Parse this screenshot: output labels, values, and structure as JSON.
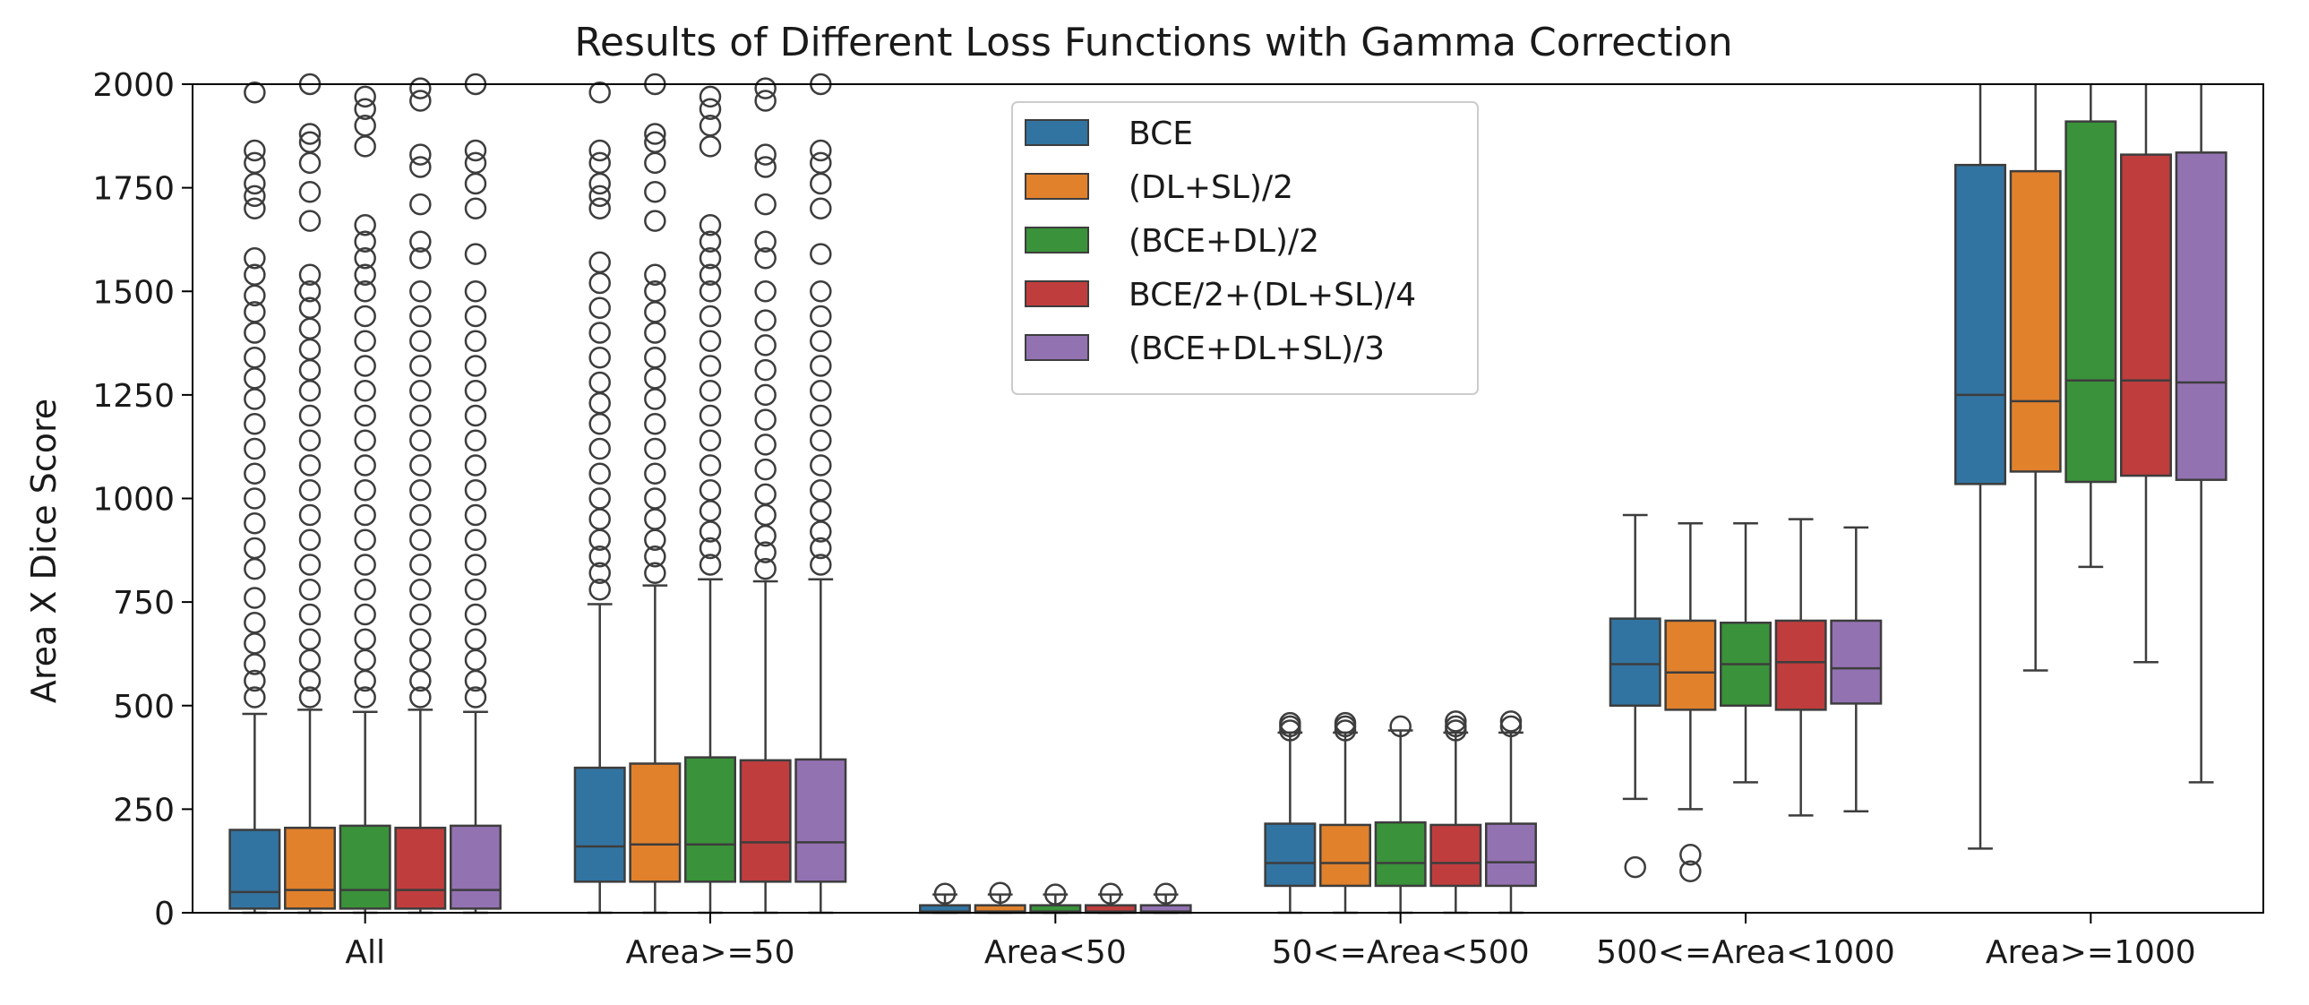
{
  "chart_data": {
    "type": "boxplot",
    "title": "Results of Different Loss Functions with Gamma Correction",
    "xlabel": "",
    "ylabel": "Area X Dice Score",
    "ylim": [
      0,
      2000
    ],
    "yticks": [
      0,
      250,
      500,
      750,
      1000,
      1250,
      1500,
      1750,
      2000
    ],
    "categories": [
      "All",
      "Area>=50",
      "Area<50",
      "50<=Area<500",
      "500<=Area<1000",
      "Area>=1000"
    ],
    "legend_position": "upper-center",
    "grid": false,
    "series": [
      {
        "name": "BCE",
        "color": "#3274a1",
        "boxes": [
          {
            "q1": 10,
            "median": 50,
            "q3": 200,
            "whisker_low": 0,
            "whisker_high": 480,
            "outliers": [
              520,
              560,
              600,
              650,
              700,
              760,
              830,
              880,
              940,
              1000,
              1060,
              1120,
              1180,
              1240,
              1290,
              1340,
              1400,
              1450,
              1490,
              1540,
              1580,
              1700,
              1730,
              1760,
              1810,
              1840,
              1980
            ]
          },
          {
            "q1": 75,
            "median": 160,
            "q3": 350,
            "whisker_low": 0,
            "whisker_high": 745,
            "outliers": [
              780,
              820,
              860,
              900,
              950,
              1000,
              1060,
              1120,
              1180,
              1230,
              1280,
              1340,
              1400,
              1460,
              1520,
              1570,
              1700,
              1730,
              1760,
              1810,
              1840,
              1980
            ]
          },
          {
            "q1": 0,
            "median": 3,
            "q3": 18,
            "whisker_low": 0,
            "whisker_high": 44,
            "outliers": [
              46
            ]
          },
          {
            "q1": 65,
            "median": 120,
            "q3": 215,
            "whisker_low": 0,
            "whisker_high": 435,
            "outliers": [
              440,
              450,
              458
            ]
          },
          {
            "q1": 500,
            "median": 600,
            "q3": 710,
            "whisker_low": 275,
            "whisker_high": 960,
            "outliers": [
              110
            ]
          },
          {
            "q1": 1035,
            "median": 1250,
            "q3": 1805,
            "whisker_low": 155,
            "whisker_high": 2000,
            "outliers": []
          }
        ]
      },
      {
        "name": "(DL+SL)/2",
        "color": "#e1812c",
        "boxes": [
          {
            "q1": 10,
            "median": 55,
            "q3": 205,
            "whisker_low": 0,
            "whisker_high": 490,
            "outliers": [
              520,
              560,
              610,
              660,
              720,
              780,
              840,
              900,
              960,
              1020,
              1080,
              1140,
              1200,
              1260,
              1310,
              1360,
              1410,
              1460,
              1500,
              1540,
              1670,
              1740,
              1810,
              1860,
              1880,
              2000
            ]
          },
          {
            "q1": 75,
            "median": 165,
            "q3": 360,
            "whisker_low": 0,
            "whisker_high": 790,
            "outliers": [
              820,
              860,
              900,
              950,
              1000,
              1060,
              1120,
              1180,
              1240,
              1290,
              1340,
              1400,
              1450,
              1500,
              1540,
              1670,
              1740,
              1810,
              1860,
              1880,
              2000
            ]
          },
          {
            "q1": 0,
            "median": 3,
            "q3": 18,
            "whisker_low": 0,
            "whisker_high": 44,
            "outliers": [
              48
            ]
          },
          {
            "q1": 65,
            "median": 120,
            "q3": 212,
            "whisker_low": 0,
            "whisker_high": 435,
            "outliers": [
              440,
              450,
              458
            ]
          },
          {
            "q1": 490,
            "median": 580,
            "q3": 705,
            "whisker_low": 250,
            "whisker_high": 940,
            "outliers": [
              100,
              140
            ]
          },
          {
            "q1": 1065,
            "median": 1235,
            "q3": 1790,
            "whisker_low": 585,
            "whisker_high": 2000,
            "outliers": []
          }
        ]
      },
      {
        "name": "(BCE+DL)/2",
        "color": "#3a923a",
        "boxes": [
          {
            "q1": 10,
            "median": 55,
            "q3": 210,
            "whisker_low": 0,
            "whisker_high": 485,
            "outliers": [
              520,
              560,
              610,
              660,
              720,
              780,
              840,
              900,
              960,
              1020,
              1080,
              1140,
              1200,
              1260,
              1320,
              1380,
              1440,
              1500,
              1540,
              1580,
              1620,
              1660,
              1850,
              1900,
              1940,
              1970
            ]
          },
          {
            "q1": 75,
            "median": 165,
            "q3": 375,
            "whisker_low": 0,
            "whisker_high": 805,
            "outliers": [
              840,
              880,
              920,
              970,
              1020,
              1080,
              1140,
              1200,
              1260,
              1320,
              1380,
              1440,
              1500,
              1540,
              1580,
              1620,
              1660,
              1850,
              1900,
              1940,
              1970
            ]
          },
          {
            "q1": 0,
            "median": 3,
            "q3": 18,
            "whisker_low": 0,
            "whisker_high": 44,
            "outliers": [
              44
            ]
          },
          {
            "q1": 65,
            "median": 120,
            "q3": 218,
            "whisker_low": 0,
            "whisker_high": 440,
            "outliers": [
              450
            ]
          },
          {
            "q1": 500,
            "median": 600,
            "q3": 700,
            "whisker_low": 315,
            "whisker_high": 940,
            "outliers": []
          },
          {
            "q1": 1040,
            "median": 1285,
            "q3": 1910,
            "whisker_low": 835,
            "whisker_high": 2000,
            "outliers": []
          }
        ]
      },
      {
        "name": "BCE/2+(DL+SL)/4",
        "color": "#c03d3e",
        "boxes": [
          {
            "q1": 10,
            "median": 55,
            "q3": 205,
            "whisker_low": 0,
            "whisker_high": 490,
            "outliers": [
              520,
              560,
              610,
              660,
              720,
              780,
              840,
              900,
              960,
              1020,
              1080,
              1140,
              1200,
              1260,
              1320,
              1380,
              1440,
              1500,
              1580,
              1620,
              1710,
              1800,
              1830,
              1960,
              1990
            ]
          },
          {
            "q1": 75,
            "median": 170,
            "q3": 368,
            "whisker_low": 0,
            "whisker_high": 800,
            "outliers": [
              830,
              870,
              910,
              960,
              1010,
              1070,
              1130,
              1190,
              1250,
              1310,
              1370,
              1430,
              1500,
              1580,
              1620,
              1710,
              1800,
              1830,
              1960,
              1990
            ]
          },
          {
            "q1": 0,
            "median": 3,
            "q3": 18,
            "whisker_low": 0,
            "whisker_high": 44,
            "outliers": [
              46
            ]
          },
          {
            "q1": 65,
            "median": 120,
            "q3": 212,
            "whisker_low": 0,
            "whisker_high": 435,
            "outliers": [
              440,
              450,
              462
            ]
          },
          {
            "q1": 490,
            "median": 605,
            "q3": 705,
            "whisker_low": 235,
            "whisker_high": 950,
            "outliers": []
          },
          {
            "q1": 1055,
            "median": 1285,
            "q3": 1830,
            "whisker_low": 605,
            "whisker_high": 2000,
            "outliers": []
          }
        ]
      },
      {
        "name": "(BCE+DL+SL)/3",
        "color": "#9372b2",
        "boxes": [
          {
            "q1": 10,
            "median": 55,
            "q3": 210,
            "whisker_low": 0,
            "whisker_high": 485,
            "outliers": [
              520,
              560,
              610,
              660,
              720,
              780,
              840,
              900,
              960,
              1020,
              1080,
              1140,
              1200,
              1260,
              1320,
              1380,
              1440,
              1500,
              1590,
              1700,
              1760,
              1810,
              1840,
              2000
            ]
          },
          {
            "q1": 75,
            "median": 170,
            "q3": 370,
            "whisker_low": 0,
            "whisker_high": 805,
            "outliers": [
              840,
              880,
              920,
              970,
              1020,
              1080,
              1140,
              1200,
              1260,
              1320,
              1380,
              1440,
              1500,
              1590,
              1700,
              1760,
              1810,
              1840,
              2000
            ]
          },
          {
            "q1": 0,
            "median": 3,
            "q3": 18,
            "whisker_low": 0,
            "whisker_high": 44,
            "outliers": [
              46
            ]
          },
          {
            "q1": 65,
            "median": 122,
            "q3": 215,
            "whisker_low": 0,
            "whisker_high": 435,
            "outliers": [
              450,
              462
            ]
          },
          {
            "q1": 505,
            "median": 590,
            "q3": 705,
            "whisker_low": 245,
            "whisker_high": 930,
            "outliers": []
          },
          {
            "q1": 1045,
            "median": 1280,
            "q3": 1835,
            "whisker_low": 315,
            "whisker_high": 2000,
            "outliers": []
          }
        ]
      }
    ]
  }
}
